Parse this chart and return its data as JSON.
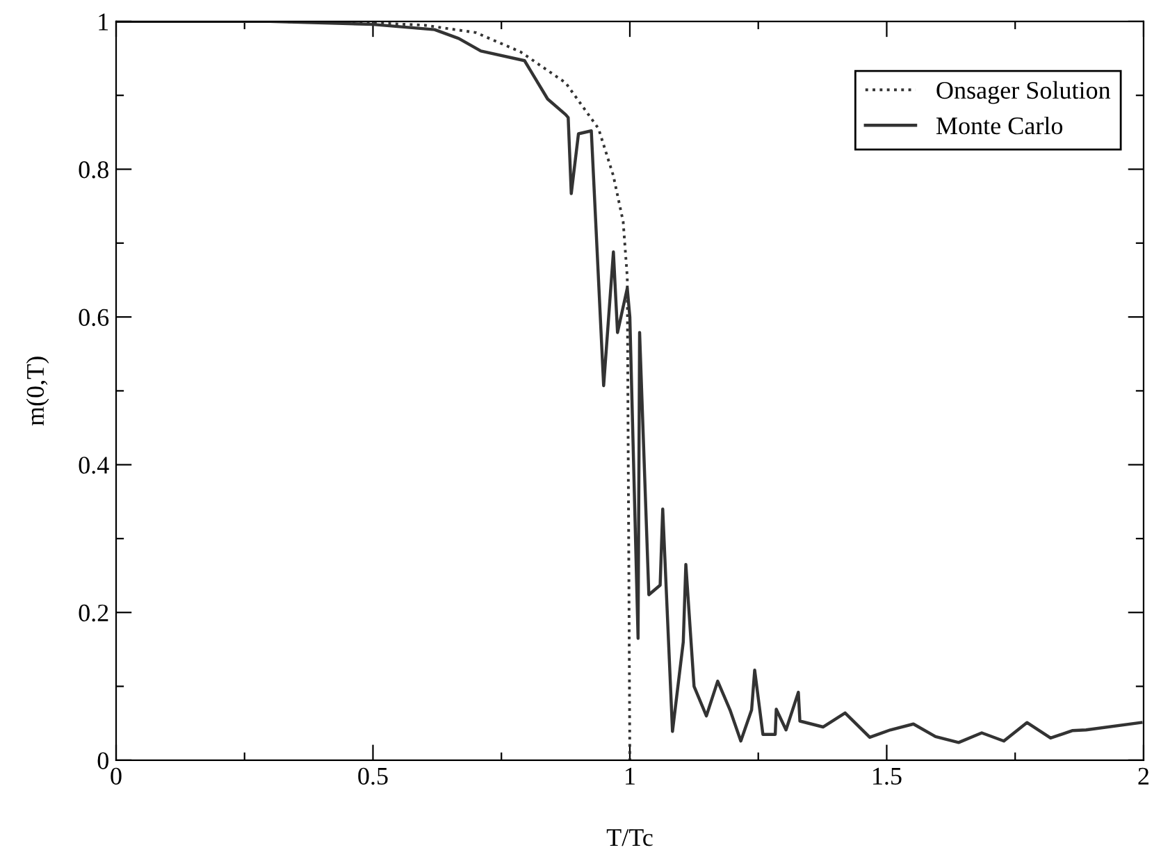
{
  "chart_data": {
    "type": "line",
    "xlabel": "T/Tc",
    "ylabel": "m(0,T)",
    "xlim": [
      0,
      2
    ],
    "ylim": [
      0,
      1
    ],
    "xticks": [
      0,
      {
        "value": 0.25,
        "label": null
      },
      0.5,
      {
        "value": 0.75,
        "label": null
      },
      1,
      {
        "value": 1.25,
        "label": null
      },
      1.5,
      {
        "value": 1.75,
        "label": null
      },
      2
    ],
    "yticks": [
      0,
      {
        "value": 0.1,
        "label": null
      },
      0.2,
      {
        "value": 0.3,
        "label": null
      },
      0.4,
      {
        "value": 0.5,
        "label": null
      },
      0.6,
      {
        "value": 0.7,
        "label": null
      },
      0.8,
      {
        "value": 0.9,
        "label": null
      },
      1
    ],
    "grid": false,
    "legend": "top right",
    "marker": "none",
    "series": [
      {
        "name": "Onsager Solution",
        "color": "#333333",
        "line_style": "dotted",
        "x": [
          0,
          0.3,
          0.5,
          0.6,
          0.7,
          0.787,
          0.875,
          0.939,
          0.968,
          0.987,
          0.995,
          1.0
        ],
        "values": [
          1,
          1,
          0.998,
          0.995,
          0.985,
          0.959,
          0.917,
          0.855,
          0.791,
          0.729,
          0.654,
          0
        ]
      },
      {
        "name": "Monte Carlo",
        "color": "#333333",
        "line_style": "solid",
        "x": [
          0,
          0.3,
          0.5,
          0.62,
          0.667,
          0.71,
          0.795,
          0.84,
          0.875,
          0.88,
          0.886,
          0.9,
          0.925,
          0.949,
          0.968,
          0.976,
          0.995,
          1.0,
          1.016,
          1.019,
          1.037,
          1.059,
          1.064,
          1.083,
          1.104,
          1.109,
          1.125,
          1.149,
          1.171,
          1.195,
          1.216,
          1.237,
          1.243,
          1.259,
          1.283,
          1.285,
          1.304,
          1.328,
          1.331,
          1.376,
          1.419,
          1.467,
          1.507,
          1.552,
          1.595,
          1.64,
          1.685,
          1.728,
          1.773,
          1.819,
          1.861,
          1.888,
          1.995
        ],
        "values": [
          1,
          1,
          0.996,
          0.989,
          0.977,
          0.96,
          0.947,
          0.895,
          0.874,
          0.87,
          0.767,
          0.848,
          0.852,
          0.507,
          0.688,
          0.579,
          0.639,
          0.6,
          0.165,
          0.579,
          0.224,
          0.237,
          0.34,
          0.039,
          0.16,
          0.265,
          0.1,
          0.06,
          0.107,
          0.068,
          0.026,
          0.068,
          0.122,
          0.035,
          0.035,
          0.069,
          0.041,
          0.092,
          0.053,
          0.045,
          0.064,
          0.031,
          0.041,
          0.049,
          0.032,
          0.024,
          0.037,
          0.026,
          0.051,
          0.03,
          0.04,
          0.041,
          0.051
        ]
      }
    ]
  }
}
